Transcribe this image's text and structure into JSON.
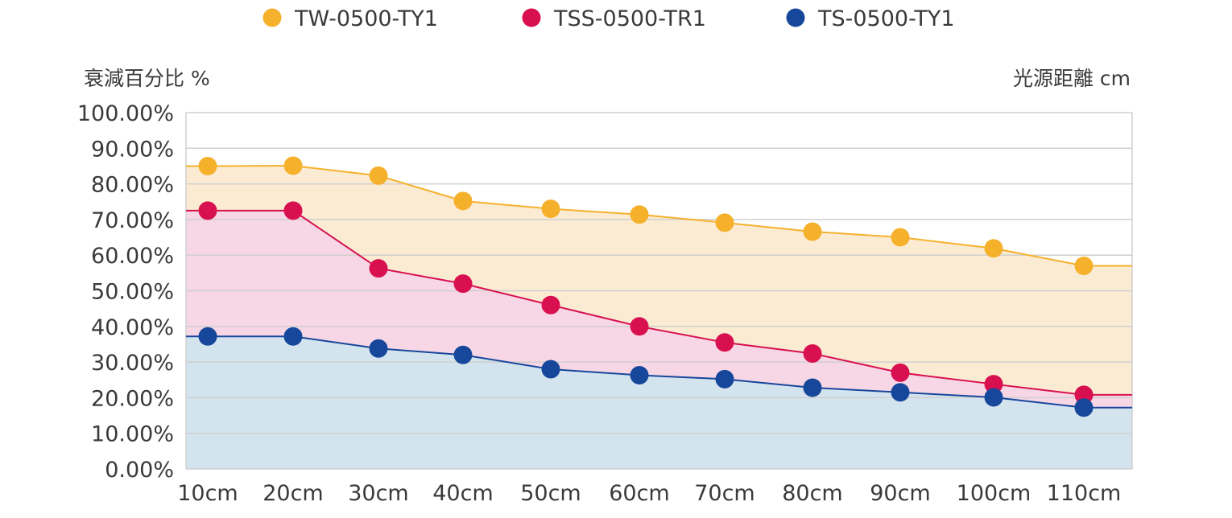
{
  "chart_data": {
    "type": "area",
    "categories": [
      "10cm",
      "20cm",
      "30cm",
      "40cm",
      "50cm",
      "60cm",
      "70cm",
      "80cm",
      "90cm",
      "100cm",
      "110cm"
    ],
    "ylabel": "衰減百分比 %",
    "xlabel": "光源距離 cm",
    "ylim": [
      0,
      100
    ],
    "y_ticks": [
      "0.00%",
      "10.00%",
      "20.00%",
      "30.00%",
      "40.00%",
      "50.00%",
      "60.00%",
      "70.00%",
      "80.00%",
      "90.00%",
      "100.00%"
    ],
    "grid": true,
    "legend_position": "top",
    "series": [
      {
        "name": "TW-0500-TY1",
        "color": "#f5b12c",
        "fill": "#fbebd3",
        "values": [
          85.0,
          85.1,
          82.3,
          75.2,
          73.0,
          71.4,
          69.1,
          66.6,
          65.0,
          61.9,
          57.0
        ],
        "edge_values": [
          85.0,
          57.0
        ]
      },
      {
        "name": "TSS-0500-TR1",
        "color": "#d8104f",
        "fill": "#f7d7e6",
        "values": [
          72.5,
          72.5,
          56.3,
          52.0,
          46.0,
          40.0,
          35.5,
          32.4,
          27.0,
          23.8,
          20.8
        ],
        "edge_values": [
          72.5,
          20.8
        ]
      },
      {
        "name": "TS-0500-TY1",
        "color": "#17479b",
        "fill": "#d4e4ef",
        "values": [
          37.2,
          37.2,
          33.8,
          32.0,
          28.0,
          26.3,
          25.2,
          22.8,
          21.5,
          20.1,
          17.2
        ],
        "edge_values": [
          37.2,
          17.2
        ]
      }
    ]
  }
}
